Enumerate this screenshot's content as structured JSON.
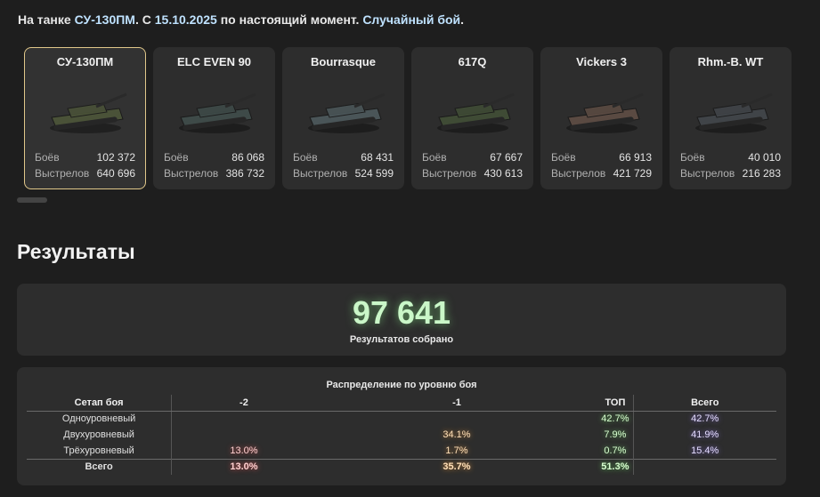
{
  "header": {
    "prefix": "На танке ",
    "tank": "СУ-130ПМ",
    "middle": ". С ",
    "date": "15.10.2025",
    "middle2": " по настоящий момент. ",
    "mode": "Случайный бой",
    "suffix": "."
  },
  "tanks": [
    {
      "name": "СУ-130ПМ",
      "battles_label": "Боёв",
      "battles": "102 372",
      "shots_label": "Выстрелов",
      "shots": "640 696",
      "selected": true,
      "color": "#4a5238"
    },
    {
      "name": "ELC EVEN 90",
      "battles_label": "Боёв",
      "battles": "86 068",
      "shots_label": "Выстрелов",
      "shots": "386 732",
      "selected": false,
      "color": "#3e4a48"
    },
    {
      "name": "Bourrasque",
      "battles_label": "Боёв",
      "battles": "68 431",
      "shots_label": "Выстрелов",
      "shots": "524 599",
      "selected": false,
      "color": "#4a5558"
    },
    {
      "name": "617Q",
      "battles_label": "Боёв",
      "battles": "67 667",
      "shots_label": "Выстрелов",
      "shots": "430 613",
      "selected": false,
      "color": "#3f4b35"
    },
    {
      "name": "Vickers 3",
      "battles_label": "Боёв",
      "battles": "66 913",
      "shots_label": "Выстрелов",
      "shots": "421 729",
      "selected": false,
      "color": "#5a4a42"
    },
    {
      "name": "Rhm.-B. WT",
      "battles_label": "Боёв",
      "battles": "40 010",
      "shots_label": "Выстрелов",
      "shots": "216 283",
      "selected": false,
      "color": "#404448"
    }
  ],
  "results": {
    "title": "Результаты",
    "total": "97 641",
    "total_caption": "Результатов собрано"
  },
  "distribution": {
    "title": "Распределение по уровню боя",
    "headers": [
      "Сетап боя",
      "-2",
      "-1",
      "ТОП",
      "Всего"
    ],
    "rows": [
      {
        "label": "Одноуровневый",
        "m2": "",
        "m1": "",
        "top": "42.7%",
        "all": "42.7%"
      },
      {
        "label": "Двухуровневый",
        "m2": "",
        "m1": "34.1%",
        "top": "7.9%",
        "all": "41.9%"
      },
      {
        "label": "Трёхуровневый",
        "m2": "13.0%",
        "m1": "1.7%",
        "top": "0.7%",
        "all": "15.4%"
      }
    ],
    "total_row": {
      "label": "Всего",
      "m2": "13.0%",
      "m1": "35.7%",
      "top": "51.3%",
      "all": ""
    },
    "colors": {
      "m2": "#ff5a5a",
      "m1": "#ffa03c",
      "top": "#6ee664",
      "all": "#9678ff"
    }
  }
}
